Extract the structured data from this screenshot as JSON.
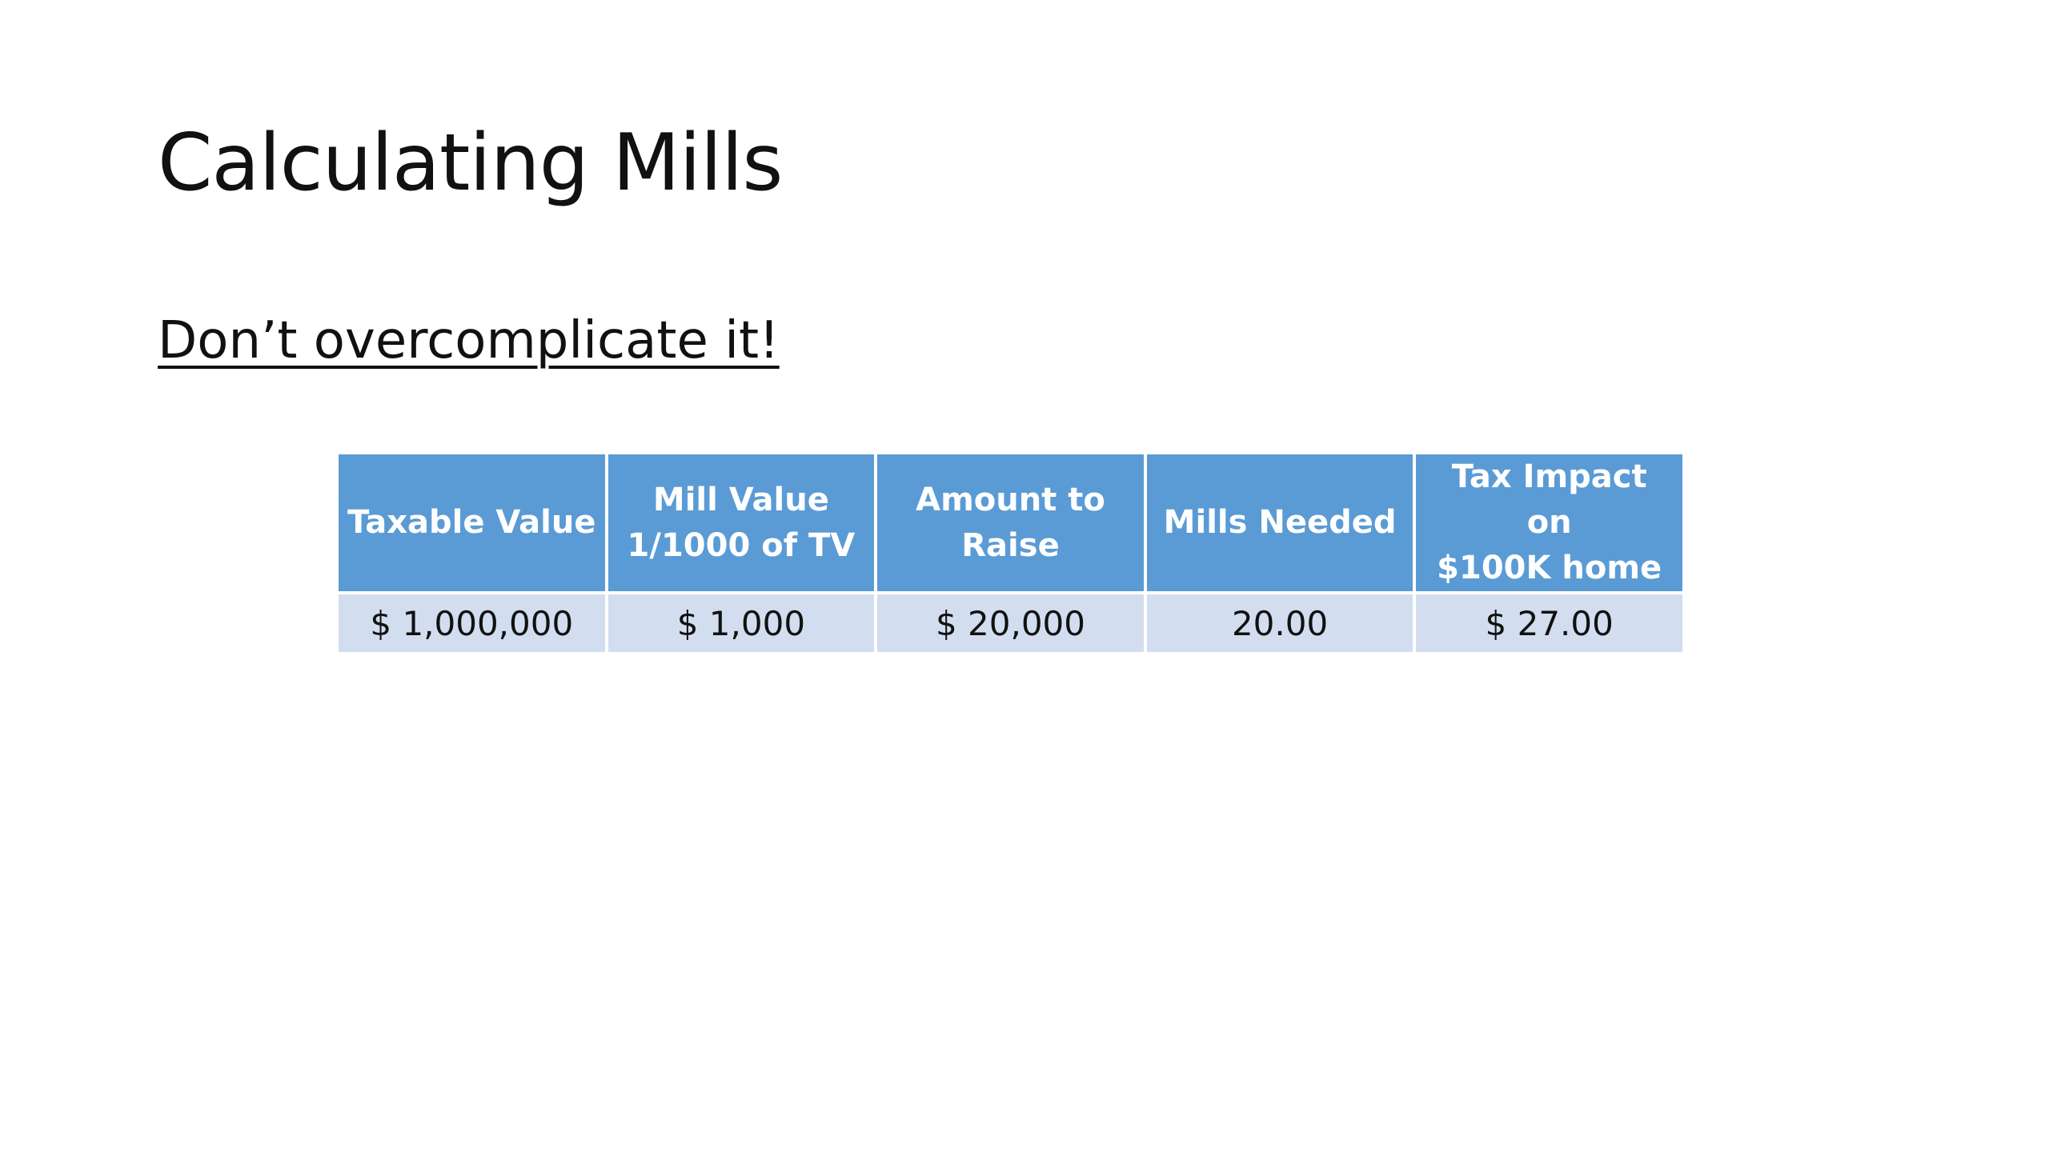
{
  "slide": {
    "title": "Calculating Mills",
    "subtitle": "Don’t overcomplicate it!"
  },
  "table": {
    "headers": [
      {
        "line1": "Taxable Value",
        "line2": ""
      },
      {
        "line1": "Mill Value",
        "line2": "1/1000 of TV"
      },
      {
        "line1": "Amount to",
        "line2": "Raise"
      },
      {
        "line1": "Mills Needed",
        "line2": ""
      },
      {
        "line1": "Tax Impact on",
        "line2": "$100K home"
      }
    ],
    "row": [
      "$ 1,000,000",
      "$ 1,000",
      "$ 20,000",
      "20.00",
      "$ 27.00"
    ]
  },
  "colors": {
    "header_fill": "#5b9bd5",
    "cell_fill": "#d2deef"
  }
}
